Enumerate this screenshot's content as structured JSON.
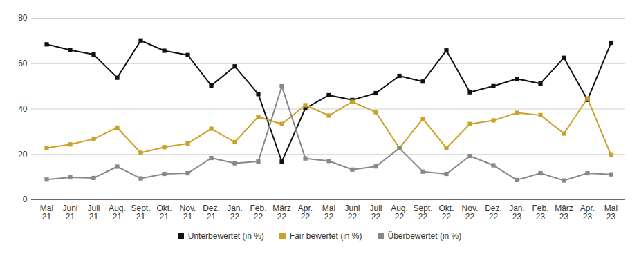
{
  "chart_data": {
    "type": "line",
    "categories": [
      "Mai 21",
      "Juni 21",
      "Juli 21",
      "Aug. 21",
      "Sept. 21",
      "Okt. 21",
      "Nov. 21",
      "Dez. 21",
      "Jan. 22",
      "Feb. 22",
      "März 22",
      "Apr. 22",
      "Mai 22",
      "Juni 22",
      "Juli 22",
      "Aug. 22",
      "Sept. 22",
      "Okt. 22",
      "Nov. 22",
      "Dez. 22",
      "Jan. 23",
      "Feb. 23",
      "März 23",
      "Apr. 23",
      "Mai 23"
    ],
    "series": [
      {
        "name": "Unterbewertet (in %)",
        "color": "#111111",
        "marker": "square",
        "values": [
          68.5,
          66,
          64,
          53.8,
          70.2,
          65.7,
          63.8,
          50.3,
          58.8,
          46.6,
          16.8,
          40.3,
          46.1,
          44,
          47,
          54.6,
          52.1,
          65.8,
          47.4,
          50.1,
          53.3,
          51.2,
          62.6,
          44,
          69.2
        ]
      },
      {
        "name": "Fair bewertet (in %)",
        "color": "#c9a227",
        "marker": "square",
        "values": [
          22.8,
          24.4,
          26.8,
          31.8,
          20.7,
          23.2,
          24.8,
          31.3,
          25.4,
          36.6,
          33.4,
          41.7,
          37.1,
          43.2,
          38.6,
          22.8,
          35.7,
          22.8,
          33.4,
          35.0,
          38.3,
          37.3,
          29.2,
          44.7,
          19.7
        ]
      },
      {
        "name": "Überbewertet (in %)",
        "color": "#888888",
        "marker": "square",
        "values": [
          8.9,
          9.9,
          9.6,
          14.6,
          9.4,
          11.4,
          11.7,
          18.4,
          16.1,
          16.9,
          50.0,
          18.2,
          17.1,
          13.3,
          14.7,
          22.7,
          12.4,
          11.4,
          19.3,
          15.2,
          8.7,
          11.7,
          8.5,
          11.7,
          11.2
        ]
      }
    ],
    "ylim": [
      0,
      80
    ],
    "yticks": [
      0,
      20,
      40,
      60,
      80
    ],
    "grid": true,
    "legend": "bottom"
  }
}
